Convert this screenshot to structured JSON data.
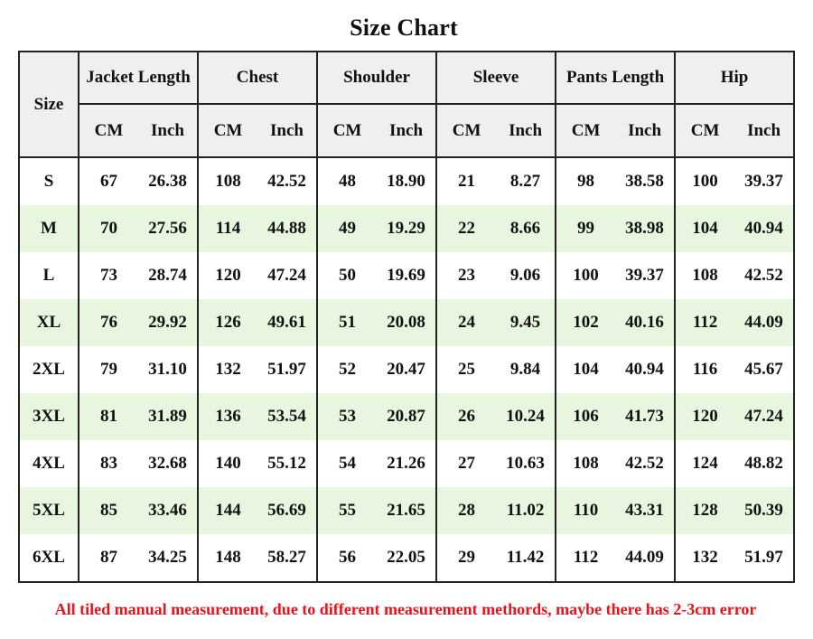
{
  "title": "Size Chart",
  "size_header": "Size",
  "groups": [
    {
      "label": "Jacket Length",
      "units": [
        "CM",
        "Inch"
      ]
    },
    {
      "label": "Chest",
      "units": [
        "CM",
        "Inch"
      ]
    },
    {
      "label": "Shoulder",
      "units": [
        "CM",
        "Inch"
      ]
    },
    {
      "label": "Sleeve",
      "units": [
        "CM",
        "Inch"
      ]
    },
    {
      "label": "Pants Length",
      "units": [
        "CM",
        "Inch"
      ]
    },
    {
      "label": "Hip",
      "units": [
        "CM",
        "Inch"
      ]
    }
  ],
  "rows": [
    {
      "size": "S",
      "values": [
        "67",
        "26.38",
        "108",
        "42.52",
        "48",
        "18.90",
        "21",
        "8.27",
        "98",
        "38.58",
        "100",
        "39.37"
      ]
    },
    {
      "size": "M",
      "values": [
        "70",
        "27.56",
        "114",
        "44.88",
        "49",
        "19.29",
        "22",
        "8.66",
        "99",
        "38.98",
        "104",
        "40.94"
      ]
    },
    {
      "size": "L",
      "values": [
        "73",
        "28.74",
        "120",
        "47.24",
        "50",
        "19.69",
        "23",
        "9.06",
        "100",
        "39.37",
        "108",
        "42.52"
      ]
    },
    {
      "size": "XL",
      "values": [
        "76",
        "29.92",
        "126",
        "49.61",
        "51",
        "20.08",
        "24",
        "9.45",
        "102",
        "40.16",
        "112",
        "44.09"
      ]
    },
    {
      "size": "2XL",
      "values": [
        "79",
        "31.10",
        "132",
        "51.97",
        "52",
        "20.47",
        "25",
        "9.84",
        "104",
        "40.94",
        "116",
        "45.67"
      ]
    },
    {
      "size": "3XL",
      "values": [
        "81",
        "31.89",
        "136",
        "53.54",
        "53",
        "20.87",
        "26",
        "10.24",
        "106",
        "41.73",
        "120",
        "47.24"
      ]
    },
    {
      "size": "4XL",
      "values": [
        "83",
        "32.68",
        "140",
        "55.12",
        "54",
        "21.26",
        "27",
        "10.63",
        "108",
        "42.52",
        "124",
        "48.82"
      ]
    },
    {
      "size": "5XL",
      "values": [
        "85",
        "33.46",
        "144",
        "56.69",
        "55",
        "21.65",
        "28",
        "11.02",
        "110",
        "43.31",
        "128",
        "50.39"
      ]
    },
    {
      "size": "6XL",
      "values": [
        "87",
        "34.25",
        "148",
        "58.27",
        "56",
        "22.05",
        "29",
        "11.42",
        "112",
        "44.09",
        "132",
        "51.97"
      ]
    }
  ],
  "note": "All tiled manual measurement, due to different measurement methords, maybe there has 2-3cm error",
  "colors": {
    "alt_row": "#e8f6df",
    "header_bg": "#efefef",
    "note": "#e8141c",
    "border": "#222222"
  }
}
